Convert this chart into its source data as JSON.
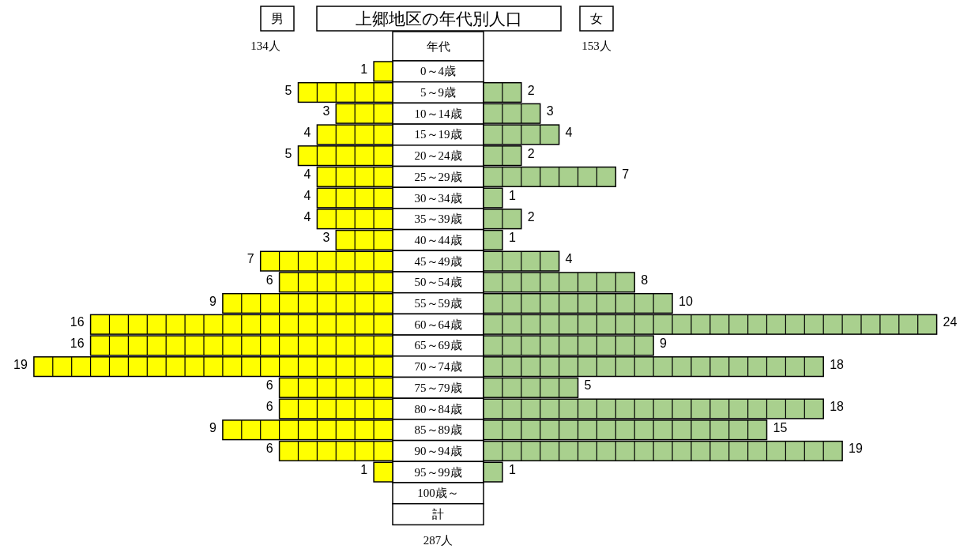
{
  "chart_data": [
    {
      "type": "bar",
      "orientation": "horizontal",
      "title": "上郷地区の年代別人口",
      "categories": [
        "0～4歳",
        "5～9歳",
        "10～14歳",
        "15～19歳",
        "20～24歳",
        "25～29歳",
        "30～34歳",
        "35～39歳",
        "40～44歳",
        "45～49歳",
        "50～54歳",
        "55～59歳",
        "60～64歳",
        "65～69歳",
        "70～74歳",
        "75～79歳",
        "80～84歳",
        "85～89歳",
        "90～94歳",
        "95～99歳",
        "100歳～",
        "計"
      ],
      "series": [
        {
          "name": "男",
          "color": "#ffff00",
          "values": [
            1,
            5,
            3,
            4,
            5,
            4,
            4,
            4,
            3,
            7,
            6,
            9,
            16,
            16,
            19,
            6,
            6,
            9,
            6,
            1,
            null,
            null
          ],
          "value_labels": [
            "1",
            "5",
            "3",
            "4",
            "5",
            "4",
            "4",
            "4",
            "3",
            "7",
            "6",
            "9",
            "16",
            "16",
            "19",
            "6",
            "6",
            "9",
            "6",
            "1",
            null,
            null
          ]
        }
      ],
      "annotations": [
        "年代",
        "134人",
        "287人"
      ]
    },
    {
      "type": "bar",
      "orientation": "horizontal",
      "tick_labels": false,
      "categories": [
        null,
        null,
        null,
        null,
        null,
        null,
        null,
        null,
        null,
        null,
        null,
        null,
        null,
        null,
        null,
        null,
        null,
        null,
        null,
        null,
        null,
        null
      ],
      "series": [
        {
          "name": "女",
          "color": "#a9d08e",
          "values": [
            0,
            2,
            3,
            4,
            2,
            7,
            1,
            2,
            1,
            4,
            8,
            10,
            24,
            9,
            18,
            5,
            18,
            15,
            19,
            1,
            null,
            null
          ],
          "value_labels": [
            null,
            "2",
            "3",
            "4",
            "2",
            "7",
            "1",
            "2",
            "1",
            "4",
            "8",
            "10",
            "24",
            "9",
            "18",
            "5",
            "18",
            "15",
            "19",
            "1",
            null,
            null
          ]
        }
      ],
      "annotations": [
        "153人"
      ]
    }
  ]
}
